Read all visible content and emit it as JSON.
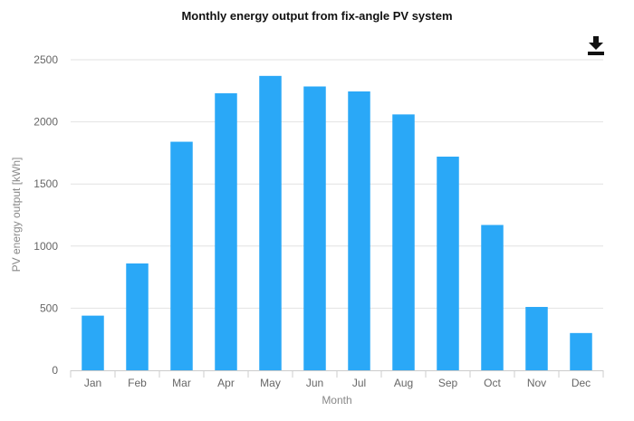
{
  "chart_data": {
    "type": "bar",
    "title": "Monthly energy output from fix-angle PV system",
    "xlabel": "Month",
    "ylabel": "PV energy output [kWh]",
    "categories": [
      "Jan",
      "Feb",
      "Mar",
      "Apr",
      "May",
      "Jun",
      "Jul",
      "Aug",
      "Sep",
      "Oct",
      "Nov",
      "Dec"
    ],
    "values": [
      440,
      860,
      1840,
      2230,
      2370,
      2285,
      2245,
      2060,
      1720,
      1170,
      510,
      300
    ],
    "ylim": [
      0,
      2500
    ],
    "yticks": [
      0,
      500,
      1000,
      1500,
      2000,
      2500
    ],
    "grid": true,
    "legend": "none",
    "bar_color": "#2AA8F7",
    "grid_color": "#E2E2E2"
  },
  "toolbar": {
    "download_icon": "download-icon"
  }
}
